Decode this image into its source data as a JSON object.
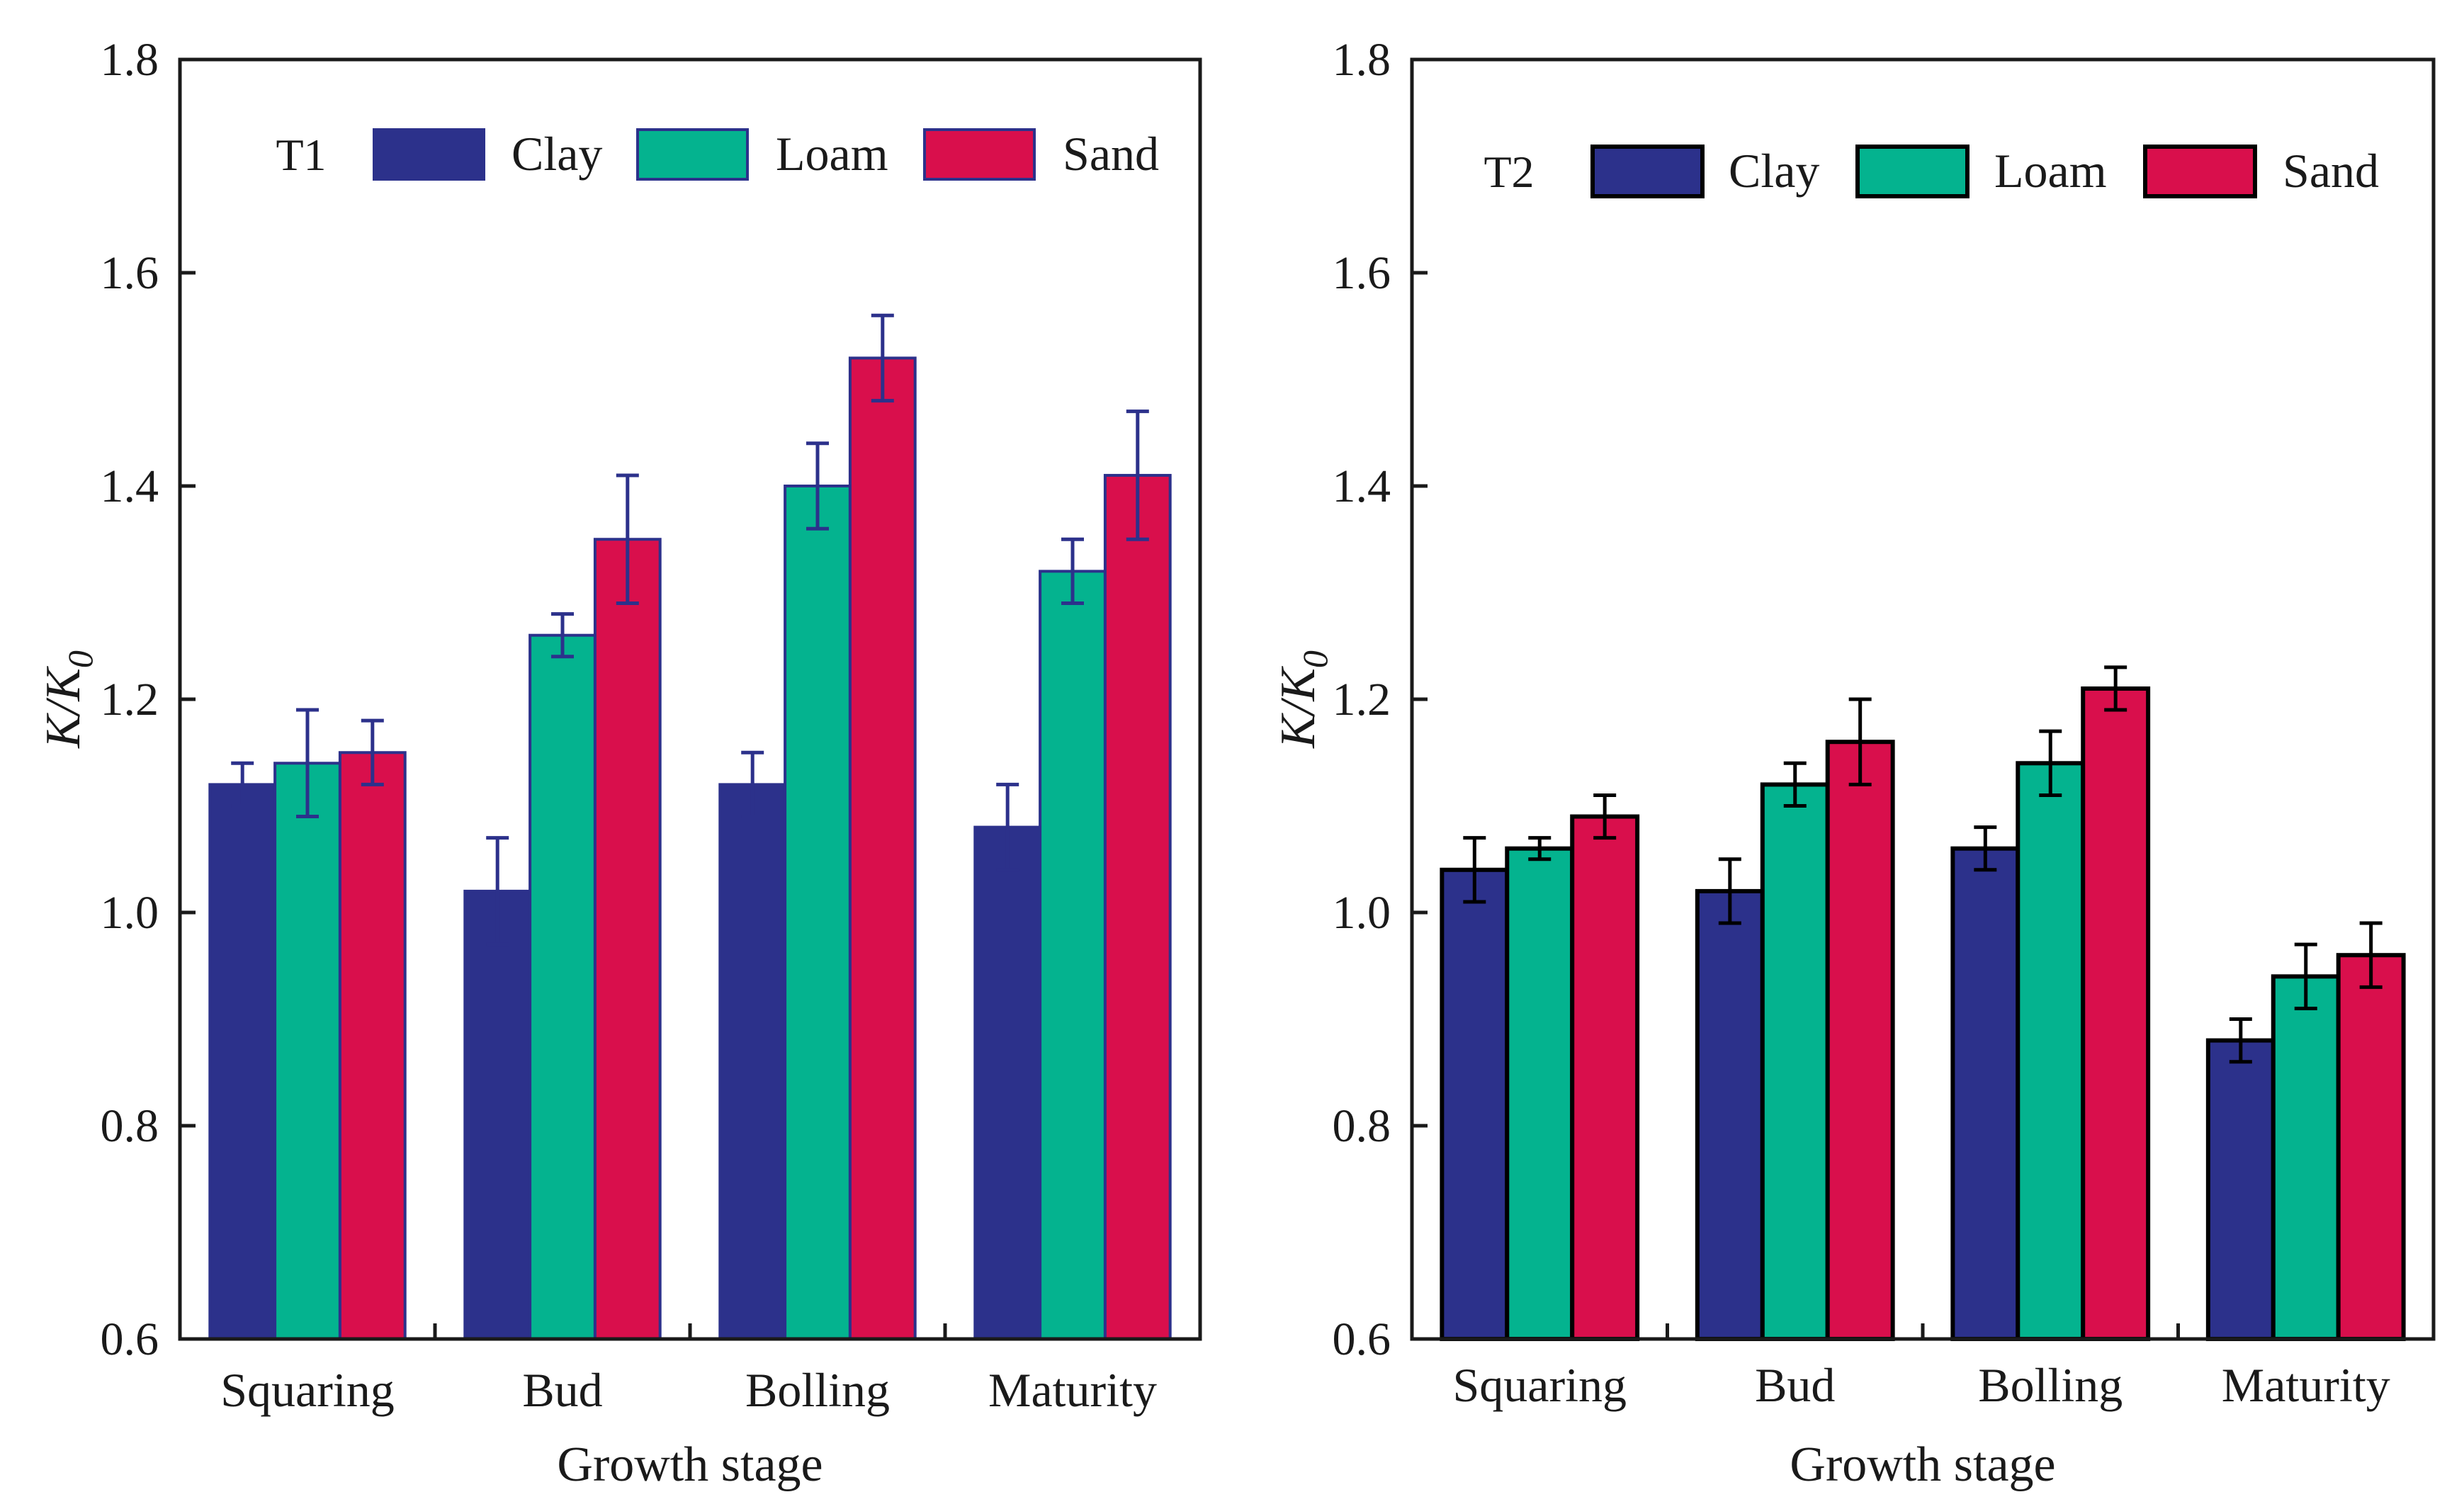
{
  "figure": {
    "colors": {
      "clay": "#2c318b",
      "loam": "#04b38f",
      "sand": "#d90f4c",
      "axis": "#1a1a1a"
    },
    "icons": [
      "legend-swatch-icon"
    ]
  },
  "chart_data": [
    {
      "panel": "T1",
      "type": "bar",
      "title": "",
      "xlabel": "Growth stage",
      "ylabel": "K/K0",
      "ylabel_main": "K/K",
      "ylabel_sub": "0",
      "ylim": [
        0.6,
        1.8
      ],
      "yticks": [
        "0.6",
        "0.8",
        "1.0",
        "1.2",
        "1.4",
        "1.6",
        "1.8"
      ],
      "legend_position": "top",
      "categories": [
        "Squaring",
        "Bud",
        "Bolling",
        "Maturity"
      ],
      "series": [
        {
          "name": "Clay",
          "color": "#2c318b",
          "values": [
            1.12,
            1.02,
            1.12,
            1.08
          ],
          "errors": [
            0.02,
            0.05,
            0.03,
            0.04
          ]
        },
        {
          "name": "Loam",
          "color": "#04b38f",
          "values": [
            1.14,
            1.26,
            1.4,
            1.32
          ],
          "errors": [
            0.05,
            0.02,
            0.04,
            0.03
          ]
        },
        {
          "name": "Sand",
          "color": "#d90f4c",
          "values": [
            1.15,
            1.35,
            1.52,
            1.41
          ],
          "errors": [
            0.03,
            0.06,
            0.04,
            0.06
          ]
        }
      ],
      "bar_stroke": "#2c318b"
    },
    {
      "panel": "T2",
      "type": "bar",
      "title": "",
      "xlabel": "Growth stage",
      "ylabel": "K/K0",
      "ylabel_main": "K/K",
      "ylabel_sub": "0",
      "ylim": [
        0.6,
        1.8
      ],
      "yticks": [
        "0.6",
        "0.8",
        "1.0",
        "1.2",
        "1.4",
        "1.6",
        "1.8"
      ],
      "legend_position": "top",
      "categories": [
        "Squaring",
        "Bud",
        "Bolling",
        "Maturity"
      ],
      "series": [
        {
          "name": "Clay",
          "color": "#2c318b",
          "values": [
            1.04,
            1.02,
            1.06,
            0.88
          ],
          "errors": [
            0.03,
            0.03,
            0.02,
            0.02
          ]
        },
        {
          "name": "Loam",
          "color": "#04b38f",
          "values": [
            1.06,
            1.12,
            1.14,
            0.94
          ],
          "errors": [
            0.01,
            0.02,
            0.03,
            0.03
          ]
        },
        {
          "name": "Sand",
          "color": "#d90f4c",
          "values": [
            1.09,
            1.16,
            1.21,
            0.96
          ],
          "errors": [
            0.02,
            0.04,
            0.02,
            0.03
          ]
        }
      ],
      "bar_stroke": "#000000"
    }
  ]
}
